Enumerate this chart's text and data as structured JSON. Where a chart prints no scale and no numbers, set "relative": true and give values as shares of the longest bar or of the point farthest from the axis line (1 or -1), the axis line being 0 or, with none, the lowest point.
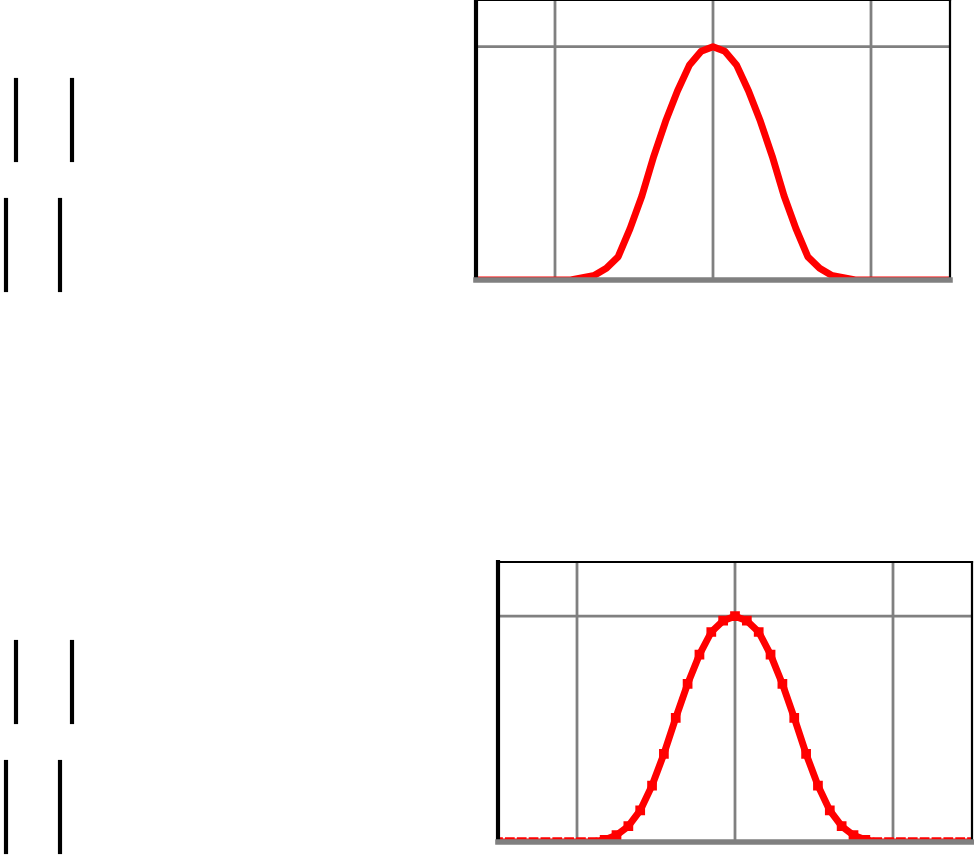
{
  "chart_data": [
    {
      "type": "line",
      "relative": true,
      "categories": [
        null,
        null,
        null,
        null,
        null,
        null,
        null,
        null,
        null,
        null,
        null,
        null,
        null,
        null,
        null,
        null,
        null,
        null,
        null,
        null,
        null,
        null,
        null,
        null,
        null,
        null,
        null,
        null,
        null,
        null,
        null,
        null,
        null,
        null,
        null,
        null,
        null,
        null,
        null,
        null,
        null
      ],
      "series": [
        {
          "color": "#ff0000",
          "values": [
            0,
            0,
            0,
            0,
            0,
            0,
            0,
            0,
            0,
            0.01,
            0.02,
            0.05,
            0.1,
            0.22,
            0.36,
            0.53,
            0.68,
            0.81,
            0.92,
            0.98,
            1,
            0.98,
            0.92,
            0.81,
            0.68,
            0.53,
            0.36,
            0.22,
            0.1,
            0.05,
            0.02,
            0.01,
            0,
            0,
            0,
            0,
            0,
            0,
            0,
            0,
            0
          ]
        }
      ],
      "grid": true,
      "marker": "none",
      "line_style": "solid"
    },
    {
      "type": "line",
      "relative": true,
      "categories": [
        null,
        null,
        null,
        null,
        null,
        null,
        null,
        null,
        null,
        null,
        null,
        null,
        null,
        null,
        null,
        null,
        null,
        null,
        null,
        null,
        null,
        null,
        null,
        null,
        null,
        null,
        null,
        null,
        null,
        null,
        null,
        null,
        null,
        null,
        null,
        null,
        null,
        null,
        null,
        null,
        null
      ],
      "series": [
        {
          "color": "#ff0000",
          "values": [
            0,
            0,
            0,
            0,
            0,
            0,
            0,
            0,
            0,
            0.01,
            0.03,
            0.07,
            0.14,
            0.25,
            0.39,
            0.55,
            0.7,
            0.83,
            0.93,
            0.98,
            1,
            0.98,
            0.93,
            0.83,
            0.7,
            0.55,
            0.39,
            0.25,
            0.14,
            0.07,
            0.03,
            0.01,
            0,
            0,
            0,
            0,
            0,
            0,
            0,
            0,
            0
          ]
        }
      ],
      "grid": true,
      "marker": "square",
      "line_style": "solid"
    }
  ]
}
